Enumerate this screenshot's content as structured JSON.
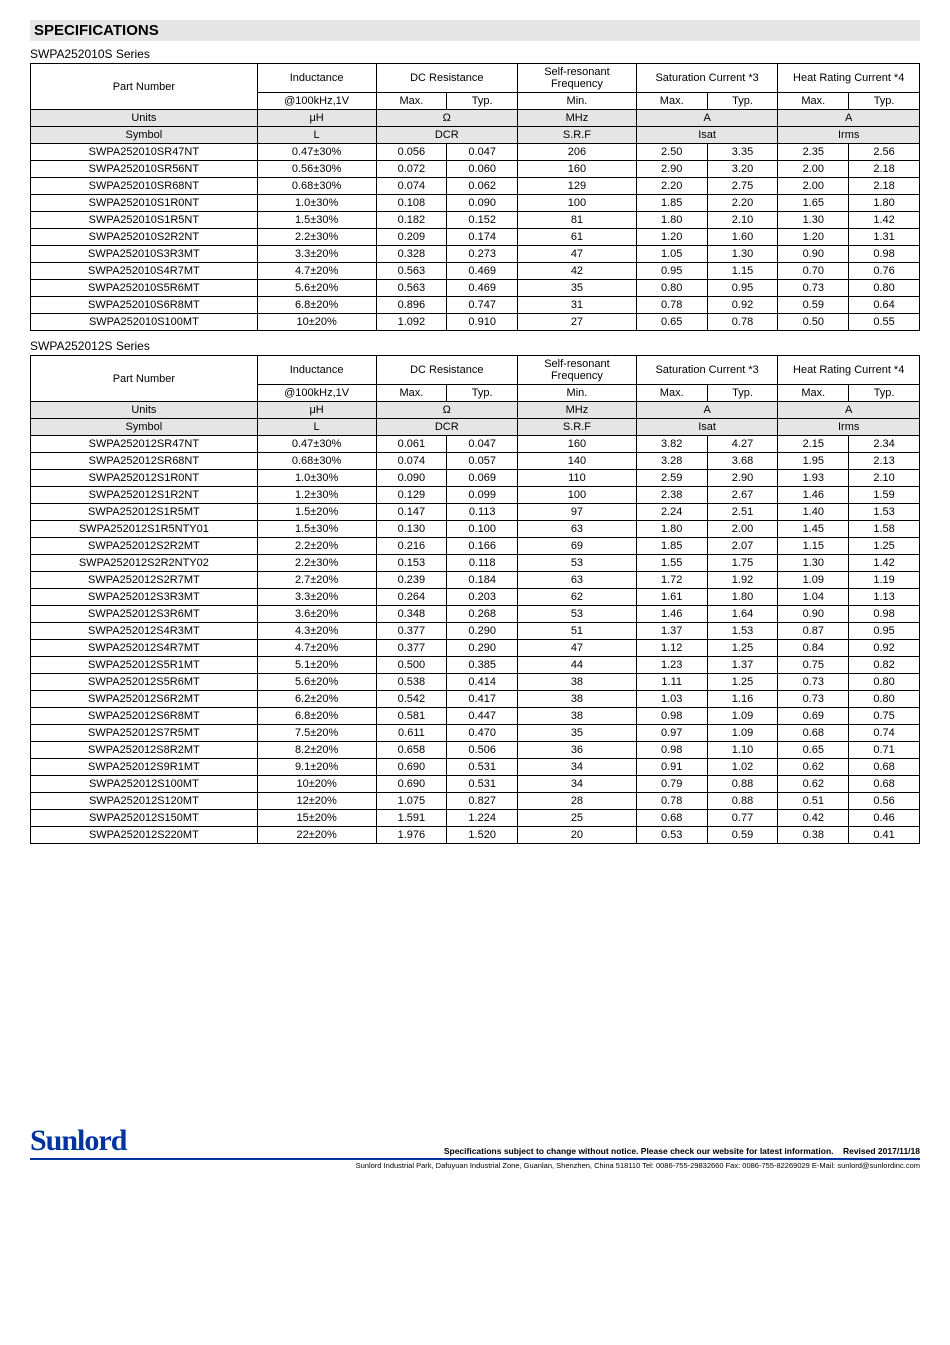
{
  "title": "SPECIFICATIONS",
  "series1": {
    "name": "SWPA252010S Series",
    "headers": {
      "pn": "Part Number",
      "ind": "Inductance",
      "dcr": "DC Resistance",
      "srf": "Self-resonant Frequency",
      "isat": "Saturation Current *3",
      "irms": "Heat Rating Current *4",
      "cond": "@100kHz,1V",
      "max": "Max.",
      "typ": "Typ.",
      "min": "Min.",
      "units": "Units",
      "uH": "μH",
      "ohm": "Ω",
      "mhz": "MHz",
      "a": "A",
      "symbol": "Symbol",
      "L": "L",
      "DCR": "DCR",
      "SRF": "S.R.F",
      "Isat": "Isat",
      "Irms": "Irms"
    },
    "rows": [
      [
        "SWPA252010SR47NT",
        "0.47±30%",
        "0.056",
        "0.047",
        "206",
        "2.50",
        "3.35",
        "2.35",
        "2.56"
      ],
      [
        "SWPA252010SR56NT",
        "0.56±30%",
        "0.072",
        "0.060",
        "160",
        "2.90",
        "3.20",
        "2.00",
        "2.18"
      ],
      [
        "SWPA252010SR68NT",
        "0.68±30%",
        "0.074",
        "0.062",
        "129",
        "2.20",
        "2.75",
        "2.00",
        "2.18"
      ],
      [
        "SWPA252010S1R0NT",
        "1.0±30%",
        "0.108",
        "0.090",
        "100",
        "1.85",
        "2.20",
        "1.65",
        "1.80"
      ],
      [
        "SWPA252010S1R5NT",
        "1.5±30%",
        "0.182",
        "0.152",
        "81",
        "1.80",
        "2.10",
        "1.30",
        "1.42"
      ],
      [
        "SWPA252010S2R2NT",
        "2.2±30%",
        "0.209",
        "0.174",
        "61",
        "1.20",
        "1.60",
        "1.20",
        "1.31"
      ],
      [
        "SWPA252010S3R3MT",
        "3.3±20%",
        "0.328",
        "0.273",
        "47",
        "1.05",
        "1.30",
        "0.90",
        "0.98"
      ],
      [
        "SWPA252010S4R7MT",
        "4.7±20%",
        "0.563",
        "0.469",
        "42",
        "0.95",
        "1.15",
        "0.70",
        "0.76"
      ],
      [
        "SWPA252010S5R6MT",
        "5.6±20%",
        "0.563",
        "0.469",
        "35",
        "0.80",
        "0.95",
        "0.73",
        "0.80"
      ],
      [
        "SWPA252010S6R8MT",
        "6.8±20%",
        "0.896",
        "0.747",
        "31",
        "0.78",
        "0.92",
        "0.59",
        "0.64"
      ],
      [
        "SWPA252010S100MT",
        "10±20%",
        "1.092",
        "0.910",
        "27",
        "0.65",
        "0.78",
        "0.50",
        "0.55"
      ]
    ]
  },
  "series2": {
    "name": "SWPA252012S Series",
    "rows": [
      [
        "SWPA252012SR47NT",
        "0.47±30%",
        "0.061",
        "0.047",
        "160",
        "3.82",
        "4.27",
        "2.15",
        "2.34"
      ],
      [
        "SWPA252012SR68NT",
        "0.68±30%",
        "0.074",
        "0.057",
        "140",
        "3.28",
        "3.68",
        "1.95",
        "2.13"
      ],
      [
        "SWPA252012S1R0NT",
        "1.0±30%",
        "0.090",
        "0.069",
        "110",
        "2.59",
        "2.90",
        "1.93",
        "2.10"
      ],
      [
        "SWPA252012S1R2NT",
        "1.2±30%",
        "0.129",
        "0.099",
        "100",
        "2.38",
        "2.67",
        "1.46",
        "1.59"
      ],
      [
        "SWPA252012S1R5MT",
        "1.5±20%",
        "0.147",
        "0.113",
        "97",
        "2.24",
        "2.51",
        "1.40",
        "1.53"
      ],
      [
        "SWPA252012S1R5NTY01",
        "1.5±30%",
        "0.130",
        "0.100",
        "63",
        "1.80",
        "2.00",
        "1.45",
        "1.58"
      ],
      [
        "SWPA252012S2R2MT",
        "2.2±20%",
        "0.216",
        "0.166",
        "69",
        "1.85",
        "2.07",
        "1.15",
        "1.25"
      ],
      [
        "SWPA252012S2R2NTY02",
        "2.2±30%",
        "0.153",
        "0.118",
        "53",
        "1.55",
        "1.75",
        "1.30",
        "1.42"
      ],
      [
        "SWPA252012S2R7MT",
        "2.7±20%",
        "0.239",
        "0.184",
        "63",
        "1.72",
        "1.92",
        "1.09",
        "1.19"
      ],
      [
        "SWPA252012S3R3MT",
        "3.3±20%",
        "0.264",
        "0.203",
        "62",
        "1.61",
        "1.80",
        "1.04",
        "1.13"
      ],
      [
        "SWPA252012S3R6MT",
        "3.6±20%",
        "0.348",
        "0.268",
        "53",
        "1.46",
        "1.64",
        "0.90",
        "0.98"
      ],
      [
        "SWPA252012S4R3MT",
        "4.3±20%",
        "0.377",
        "0.290",
        "51",
        "1.37",
        "1.53",
        "0.87",
        "0.95"
      ],
      [
        "SWPA252012S4R7MT",
        "4.7±20%",
        "0.377",
        "0.290",
        "47",
        "1.12",
        "1.25",
        "0.84",
        "0.92"
      ],
      [
        "SWPA252012S5R1MT",
        "5.1±20%",
        "0.500",
        "0.385",
        "44",
        "1.23",
        "1.37",
        "0.75",
        "0.82"
      ],
      [
        "SWPA252012S5R6MT",
        "5.6±20%",
        "0.538",
        "0.414",
        "38",
        "1.11",
        "1.25",
        "0.73",
        "0.80"
      ],
      [
        "SWPA252012S6R2MT",
        "6.2±20%",
        "0.542",
        "0.417",
        "38",
        "1.03",
        "1.16",
        "0.73",
        "0.80"
      ],
      [
        "SWPA252012S6R8MT",
        "6.8±20%",
        "0.581",
        "0.447",
        "38",
        "0.98",
        "1.09",
        "0.69",
        "0.75"
      ],
      [
        "SWPA252012S7R5MT",
        "7.5±20%",
        "0.611",
        "0.470",
        "35",
        "0.97",
        "1.09",
        "0.68",
        "0.74"
      ],
      [
        "SWPA252012S8R2MT",
        "8.2±20%",
        "0.658",
        "0.506",
        "36",
        "0.98",
        "1.10",
        "0.65",
        "0.71"
      ],
      [
        "SWPA252012S9R1MT",
        "9.1±20%",
        "0.690",
        "0.531",
        "34",
        "0.91",
        "1.02",
        "0.62",
        "0.68"
      ],
      [
        "SWPA252012S100MT",
        "10±20%",
        "0.690",
        "0.531",
        "34",
        "0.79",
        "0.88",
        "0.62",
        "0.68"
      ],
      [
        "SWPA252012S120MT",
        "12±20%",
        "1.075",
        "0.827",
        "28",
        "0.78",
        "0.88",
        "0.51",
        "0.56"
      ],
      [
        "SWPA252012S150MT",
        "15±20%",
        "1.591",
        "1.224",
        "25",
        "0.68",
        "0.77",
        "0.42",
        "0.46"
      ],
      [
        "SWPA252012S220MT",
        "22±20%",
        "1.976",
        "1.520",
        "20",
        "0.53",
        "0.59",
        "0.38",
        "0.41"
      ]
    ]
  },
  "footer": {
    "logo": "Sunlord",
    "disclaimer": "Specifications subject to change without notice. Please check our website for latest information.",
    "revised": "Revised 2017/11/18",
    "addr": "Sunlord Industrial Park, Dafuyuan Industrial Zone, Guanlan, Shenzhen, China 518110 Tel: 0086-755-29832660 Fax: 0086-755-82269029 E-Mail: sunlord@sunlordinc.com"
  }
}
